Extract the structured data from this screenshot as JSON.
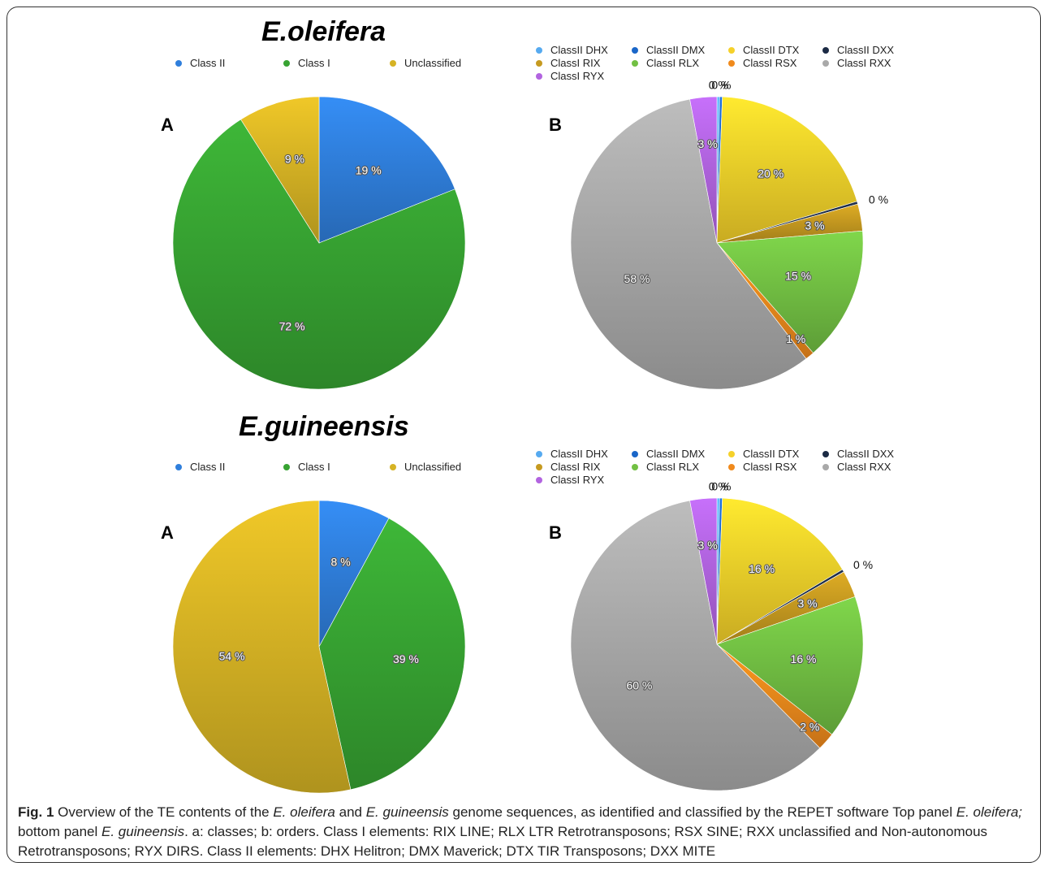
{
  "colors": {
    "ClassII": "#2f7fdc",
    "ClassI": "#37a332",
    "Unclassified": "#d6b324",
    "ClassII DHX": "#56aaf0",
    "ClassII DMX": "#1a66c8",
    "ClassII DTX": "#f5d12a",
    "ClassII DXX": "#1b2a44",
    "ClassI RIX": "#c69a20",
    "ClassI RLX": "#72c043",
    "ClassI RSX": "#f08a1c",
    "ClassI RXX": "#a9a9a9",
    "ClassI RYX": "#b264e0"
  },
  "panels": [
    {
      "title": "E.oleifera",
      "letterA": "A",
      "letterB": "B",
      "classLegend": [
        "Class II",
        "Class I",
        "Unclassified"
      ],
      "orderLegend": [
        "ClassII DHX",
        "ClassII DMX",
        "ClassII DTX",
        "ClassII DXX",
        "ClassI RIX",
        "ClassI RLX",
        "ClassI RSX",
        "ClassI RXX",
        "ClassI RYX"
      ]
    },
    {
      "title": "E.guineensis",
      "letterA": "A",
      "letterB": "B",
      "classLegend": [
        "Class II",
        "Class I",
        "Unclassified"
      ],
      "orderLegend": [
        "ClassII DHX",
        "ClassII DMX",
        "ClassII DTX",
        "ClassII DXX",
        "ClassI RIX",
        "ClassI RLX",
        "ClassI RSX",
        "ClassI RXX",
        "ClassI RYX"
      ]
    }
  ],
  "chart_data": [
    {
      "type": "pie",
      "title": "E.oleifera",
      "panel": "A",
      "categories": [
        "Class II",
        "Class I",
        "Unclassified"
      ],
      "values": [
        19,
        72,
        9
      ],
      "labels": [
        "19 %",
        "72 %",
        "9 %"
      ]
    },
    {
      "type": "pie",
      "title": "E.oleifera",
      "panel": "B",
      "categories": [
        "ClassII DHX",
        "ClassII DMX",
        "ClassII DTX",
        "ClassII DXX",
        "ClassI RIX",
        "ClassI RLX",
        "ClassI RSX",
        "ClassI RXX",
        "ClassI RYX"
      ],
      "values": [
        0.3,
        0.3,
        20,
        0.3,
        3,
        15,
        1,
        58,
        3
      ],
      "labels": [
        "0 %",
        "0 %",
        "20 %",
        "0 %",
        "3 %",
        "15 %",
        "1 %",
        "58 %",
        "3 %"
      ]
    },
    {
      "type": "pie",
      "title": "E.guineensis",
      "panel": "A",
      "categories": [
        "Class II",
        "Class I",
        "Unclassified"
      ],
      "values": [
        8,
        39,
        54
      ],
      "labels": [
        "8 %",
        "39 %",
        "54 %"
      ]
    },
    {
      "type": "pie",
      "title": "E.guineensis",
      "panel": "B",
      "categories": [
        "ClassII DHX",
        "ClassII DMX",
        "ClassII DTX",
        "ClassII DXX",
        "ClassI RIX",
        "ClassI RLX",
        "ClassI RSX",
        "ClassI RXX",
        "ClassI RYX"
      ],
      "values": [
        0.3,
        0.3,
        16,
        0.3,
        3,
        16,
        2,
        60,
        3
      ],
      "labels": [
        "0 %",
        "0 %",
        "16 %",
        "0 %",
        "3 %",
        "16 %",
        "2 %",
        "60 %",
        "3 %"
      ]
    }
  ],
  "caption": {
    "fig": "Fig. 1",
    "parts": [
      {
        "t": " Overview of the TE contents of the ",
        "i": false
      },
      {
        "t": "E. oleifera",
        "i": true
      },
      {
        "t": " and ",
        "i": false
      },
      {
        "t": "E. guineensis",
        "i": true
      },
      {
        "t": " genome sequences, as identified and classified by the REPET software Top panel ",
        "i": false
      },
      {
        "t": "E. oleifera;",
        "i": true
      },
      {
        "t": " bottom panel ",
        "i": false
      },
      {
        "t": "E. guineensis",
        "i": true
      },
      {
        "t": ". a: classes; b: orders. Class I elements: RIX LINE; RLX LTR Retrotransposons; RSX SINE; RXX unclassified and Non-autonomous Retrotransposons; RYX DIRS. Class II elements: DHX Helitron; DMX Maverick; DTX TIR Transposons; DXX MITE",
        "i": false
      }
    ]
  }
}
